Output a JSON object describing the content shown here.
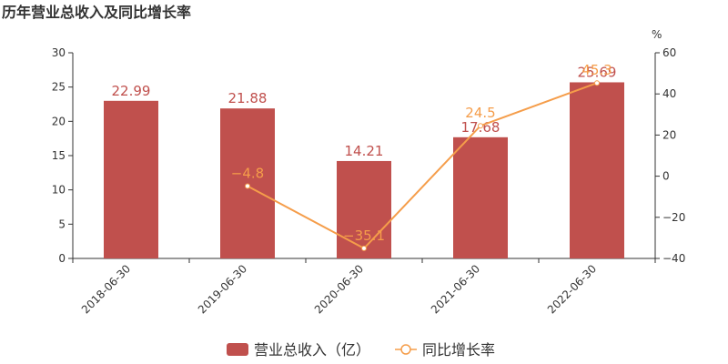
{
  "chart_data": {
    "type": "bar",
    "title": "历年营业总收入及同比增长率",
    "categories": [
      "2018-06-30",
      "2019-06-30",
      "2020-06-30",
      "2021-06-30",
      "2022-06-30"
    ],
    "series": [
      {
        "name": "营业总收入（亿）",
        "type": "bar",
        "axis": "left",
        "values": [
          22.99,
          21.88,
          14.21,
          17.68,
          25.69
        ],
        "labels": [
          "22.99",
          "21.88",
          "14.21",
          "17.68",
          "25.69"
        ]
      },
      {
        "name": "同比增长率",
        "type": "line",
        "axis": "right",
        "values": [
          null,
          -4.8,
          -35.1,
          24.5,
          45.3
        ],
        "labels": [
          "",
          "−4.8",
          "−35.1",
          "24.5",
          "45.3"
        ]
      }
    ],
    "y_left": {
      "min": 0,
      "max": 30,
      "ticks": [
        "0",
        "5",
        "10",
        "15",
        "20",
        "25",
        "30"
      ]
    },
    "y_right": {
      "label": "%",
      "min": -40,
      "max": 60,
      "ticks": [
        "−40",
        "−20",
        "0",
        "20",
        "40",
        "60"
      ]
    },
    "grid": false,
    "legend": "bottom-center",
    "colors": {
      "bar": "#c0504d",
      "line": "#f59d4a",
      "axis": "#333333"
    }
  }
}
